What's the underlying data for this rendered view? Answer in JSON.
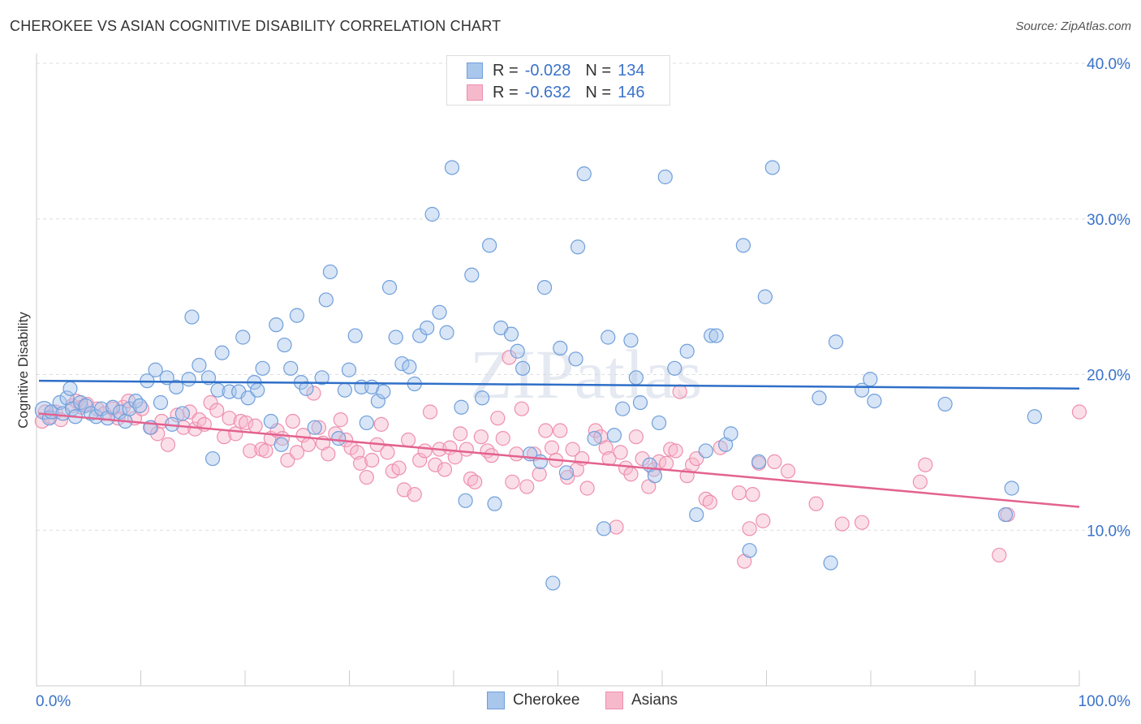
{
  "header": {
    "title": "CHEROKEE VS ASIAN COGNITIVE DISABILITY CORRELATION CHART",
    "source": "Source: ZipAtlas.com"
  },
  "watermark": "ZIPatlas",
  "legend": {
    "rows": [
      {
        "r_label": "R =",
        "r_value": "-0.028",
        "n_label": "N =",
        "n_value": "134"
      },
      {
        "r_label": "R =",
        "r_value": "-0.632",
        "n_label": "N =",
        "n_value": "146"
      }
    ]
  },
  "bottom_legend": {
    "items": [
      {
        "label": "Cherokee"
      },
      {
        "label": "Asians"
      }
    ]
  },
  "colors": {
    "cherokee_fill": "#a9c6ec",
    "cherokee_stroke": "#6f9fdc",
    "cherokee_line": "#2f6fc8",
    "asians_fill": "#f6b9cc",
    "asians_stroke": "#ee8fae",
    "asians_line": "#e3628f",
    "axis_text": "#3a73c9",
    "grid": "#dddddd"
  },
  "chart_data": {
    "type": "scatter",
    "title": "CHEROKEE VS ASIAN COGNITIVE DISABILITY CORRELATION CHART",
    "xlabel": "",
    "ylabel": "Cognitive Disability",
    "xlim": [
      0,
      100
    ],
    "ylim": [
      0,
      40.0
    ],
    "x_tick_labels": [
      "0.0%",
      "100.0%"
    ],
    "y_ticks": [
      10,
      20,
      30,
      40
    ],
    "y_tick_labels": [
      "10.0%",
      "20.0%",
      "30.0%",
      "40.0%"
    ],
    "grid": true,
    "series": [
      {
        "name": "Cherokee",
        "r": -0.028,
        "n": 134,
        "trend": {
          "x": [
            0,
            100
          ],
          "y": [
            19.6,
            19.1
          ]
        },
        "points": [
          [
            0.5,
            17.7
          ],
          [
            1.0,
            17.2
          ],
          [
            1.2,
            17.6
          ],
          [
            2.0,
            18.2
          ],
          [
            2.3,
            17.5
          ],
          [
            2.7,
            18.5
          ],
          [
            3.0,
            19.1
          ],
          [
            3.2,
            17.8
          ],
          [
            3.5,
            17.3
          ],
          [
            4.0,
            18.2
          ],
          [
            4.5,
            18.0
          ],
          [
            5.0,
            17.5
          ],
          [
            5.5,
            17.3
          ],
          [
            6.0,
            17.8
          ],
          [
            6.6,
            17.2
          ],
          [
            7.1,
            17.9
          ],
          [
            7.8,
            17.6
          ],
          [
            8.3,
            17.0
          ],
          [
            8.7,
            17.8
          ],
          [
            9.3,
            18.3
          ],
          [
            9.7,
            18.0
          ],
          [
            10.4,
            19.6
          ],
          [
            10.7,
            16.6
          ],
          [
            11.2,
            20.3
          ],
          [
            11.7,
            18.2
          ],
          [
            12.3,
            19.8
          ],
          [
            12.8,
            16.8
          ],
          [
            13.2,
            19.2
          ],
          [
            13.8,
            17.5
          ],
          [
            14.4,
            19.7
          ],
          [
            14.7,
            23.7
          ],
          [
            15.4,
            20.6
          ],
          [
            16.3,
            19.8
          ],
          [
            16.7,
            14.6
          ],
          [
            17.2,
            19.0
          ],
          [
            17.6,
            21.4
          ],
          [
            18.3,
            18.9
          ],
          [
            19.2,
            18.9
          ],
          [
            19.6,
            22.4
          ],
          [
            20.1,
            18.5
          ],
          [
            20.7,
            19.5
          ],
          [
            21.0,
            19.0
          ],
          [
            21.5,
            20.4
          ],
          [
            22.3,
            17.0
          ],
          [
            22.8,
            23.2
          ],
          [
            23.3,
            15.5
          ],
          [
            23.6,
            21.9
          ],
          [
            24.2,
            20.4
          ],
          [
            24.8,
            23.8
          ],
          [
            25.2,
            19.5
          ],
          [
            25.7,
            19.1
          ],
          [
            26.5,
            16.6
          ],
          [
            27.2,
            19.8
          ],
          [
            27.6,
            24.8
          ],
          [
            28.0,
            26.6
          ],
          [
            28.8,
            15.9
          ],
          [
            29.4,
            19.0
          ],
          [
            29.8,
            20.3
          ],
          [
            30.4,
            22.5
          ],
          [
            31.0,
            19.2
          ],
          [
            31.5,
            16.9
          ],
          [
            32.0,
            19.2
          ],
          [
            32.6,
            18.3
          ],
          [
            33.1,
            18.9
          ],
          [
            33.7,
            25.6
          ],
          [
            34.3,
            22.4
          ],
          [
            34.9,
            20.7
          ],
          [
            35.6,
            20.5
          ],
          [
            36.1,
            19.4
          ],
          [
            36.6,
            22.5
          ],
          [
            37.3,
            23.0
          ],
          [
            37.8,
            30.3
          ],
          [
            38.5,
            24.0
          ],
          [
            39.2,
            22.7
          ],
          [
            39.7,
            33.3
          ],
          [
            40.6,
            17.9
          ],
          [
            41.0,
            11.9
          ],
          [
            41.6,
            26.4
          ],
          [
            42.6,
            18.5
          ],
          [
            43.3,
            28.3
          ],
          [
            43.8,
            11.7
          ],
          [
            44.4,
            23.0
          ],
          [
            45.4,
            22.6
          ],
          [
            46.0,
            21.5
          ],
          [
            46.5,
            20.4
          ],
          [
            47.2,
            14.9
          ],
          [
            48.2,
            14.4
          ],
          [
            48.6,
            25.6
          ],
          [
            49.4,
            6.6
          ],
          [
            50.1,
            21.7
          ],
          [
            50.7,
            13.7
          ],
          [
            51.6,
            21.0
          ],
          [
            51.8,
            28.2
          ],
          [
            52.4,
            32.9
          ],
          [
            53.4,
            15.9
          ],
          [
            54.3,
            10.1
          ],
          [
            54.7,
            22.4
          ],
          [
            55.3,
            16.1
          ],
          [
            56.1,
            17.8
          ],
          [
            56.9,
            22.2
          ],
          [
            57.4,
            19.8
          ],
          [
            57.8,
            18.2
          ],
          [
            58.7,
            14.2
          ],
          [
            59.2,
            13.5
          ],
          [
            59.6,
            16.9
          ],
          [
            60.2,
            32.7
          ],
          [
            61.1,
            20.4
          ],
          [
            62.3,
            21.5
          ],
          [
            63.2,
            11.0
          ],
          [
            64.1,
            15.1
          ],
          [
            64.6,
            22.5
          ],
          [
            65.1,
            22.5
          ],
          [
            66.0,
            15.5
          ],
          [
            66.5,
            16.2
          ],
          [
            67.7,
            28.3
          ],
          [
            68.3,
            8.7
          ],
          [
            69.2,
            14.4
          ],
          [
            69.8,
            25.0
          ],
          [
            70.5,
            33.3
          ],
          [
            75.0,
            18.5
          ],
          [
            76.1,
            7.9
          ],
          [
            76.6,
            22.1
          ],
          [
            79.1,
            19.0
          ],
          [
            79.9,
            19.7
          ],
          [
            80.3,
            18.3
          ],
          [
            87.1,
            18.1
          ],
          [
            92.9,
            11.0
          ],
          [
            93.5,
            12.7
          ],
          [
            95.7,
            17.3
          ]
        ]
      },
      {
        "name": "Asians",
        "r": -0.632,
        "n": 146,
        "trend": {
          "x": [
            0,
            100
          ],
          "y": [
            17.5,
            11.5
          ]
        },
        "points": [
          [
            0.3,
            17.0
          ],
          [
            0.6,
            17.6
          ],
          [
            1.1,
            17.3
          ],
          [
            1.6,
            17.6
          ],
          [
            2.1,
            17.1
          ],
          [
            3.2,
            18.0
          ],
          [
            3.6,
            18.3
          ],
          [
            4.1,
            17.9
          ],
          [
            4.6,
            18.1
          ],
          [
            5.6,
            17.8
          ],
          [
            6.3,
            17.5
          ],
          [
            7.1,
            17.8
          ],
          [
            7.6,
            17.2
          ],
          [
            8.1,
            17.9
          ],
          [
            8.6,
            18.3
          ],
          [
            9.2,
            17.2
          ],
          [
            9.9,
            17.8
          ],
          [
            10.8,
            16.6
          ],
          [
            11.4,
            16.2
          ],
          [
            11.8,
            17.0
          ],
          [
            12.4,
            15.5
          ],
          [
            13.3,
            17.4
          ],
          [
            13.9,
            16.6
          ],
          [
            14.5,
            17.6
          ],
          [
            15.0,
            16.5
          ],
          [
            15.4,
            17.1
          ],
          [
            15.9,
            16.8
          ],
          [
            16.5,
            18.2
          ],
          [
            17.1,
            17.7
          ],
          [
            17.8,
            16.0
          ],
          [
            18.3,
            17.2
          ],
          [
            18.9,
            16.2
          ],
          [
            19.4,
            17.0
          ],
          [
            19.9,
            16.9
          ],
          [
            20.3,
            15.1
          ],
          [
            20.8,
            16.7
          ],
          [
            21.4,
            15.2
          ],
          [
            21.8,
            15.1
          ],
          [
            22.3,
            15.9
          ],
          [
            22.9,
            16.4
          ],
          [
            23.4,
            15.9
          ],
          [
            23.9,
            14.5
          ],
          [
            24.4,
            17.0
          ],
          [
            24.8,
            15.0
          ],
          [
            25.4,
            16.1
          ],
          [
            25.9,
            15.5
          ],
          [
            26.4,
            18.8
          ],
          [
            26.9,
            16.6
          ],
          [
            27.3,
            15.6
          ],
          [
            27.8,
            14.9
          ],
          [
            28.5,
            16.2
          ],
          [
            29.0,
            17.1
          ],
          [
            29.5,
            15.8
          ],
          [
            30.0,
            15.3
          ],
          [
            30.6,
            15.0
          ],
          [
            30.9,
            14.3
          ],
          [
            31.5,
            13.4
          ],
          [
            32.0,
            14.5
          ],
          [
            32.5,
            15.5
          ],
          [
            32.9,
            16.8
          ],
          [
            33.5,
            15.0
          ],
          [
            34.0,
            13.8
          ],
          [
            34.6,
            14.0
          ],
          [
            35.1,
            12.6
          ],
          [
            35.5,
            15.8
          ],
          [
            36.1,
            12.3
          ],
          [
            36.6,
            14.5
          ],
          [
            37.1,
            15.1
          ],
          [
            37.6,
            17.6
          ],
          [
            38.1,
            14.2
          ],
          [
            38.5,
            15.2
          ],
          [
            39.0,
            13.9
          ],
          [
            39.5,
            15.3
          ],
          [
            40.0,
            14.7
          ],
          [
            40.5,
            16.2
          ],
          [
            41.1,
            15.2
          ],
          [
            41.5,
            13.3
          ],
          [
            41.9,
            13.1
          ],
          [
            42.5,
            16.0
          ],
          [
            43.1,
            15.1
          ],
          [
            43.5,
            14.8
          ],
          [
            44.1,
            17.2
          ],
          [
            44.6,
            15.9
          ],
          [
            45.2,
            21.1
          ],
          [
            45.5,
            13.1
          ],
          [
            45.9,
            14.9
          ],
          [
            46.4,
            17.8
          ],
          [
            46.9,
            12.8
          ],
          [
            47.6,
            14.9
          ],
          [
            48.1,
            13.6
          ],
          [
            48.7,
            16.4
          ],
          [
            49.3,
            15.3
          ],
          [
            49.7,
            14.5
          ],
          [
            50.1,
            16.4
          ],
          [
            50.8,
            13.4
          ],
          [
            51.3,
            15.2
          ],
          [
            51.7,
            13.9
          ],
          [
            52.2,
            14.6
          ],
          [
            52.7,
            12.7
          ],
          [
            53.5,
            16.4
          ],
          [
            54.0,
            16.0
          ],
          [
            54.5,
            15.3
          ],
          [
            54.8,
            14.6
          ],
          [
            55.5,
            10.2
          ],
          [
            55.9,
            15.0
          ],
          [
            56.4,
            14.0
          ],
          [
            56.9,
            13.6
          ],
          [
            57.4,
            16.0
          ],
          [
            58.0,
            14.6
          ],
          [
            58.6,
            12.8
          ],
          [
            59.1,
            13.9
          ],
          [
            59.6,
            14.4
          ],
          [
            60.3,
            14.3
          ],
          [
            60.7,
            15.2
          ],
          [
            61.2,
            15.1
          ],
          [
            61.6,
            18.9
          ],
          [
            62.3,
            13.5
          ],
          [
            62.8,
            14.2
          ],
          [
            63.2,
            14.6
          ],
          [
            64.1,
            12.0
          ],
          [
            64.5,
            11.8
          ],
          [
            65.5,
            15.3
          ],
          [
            67.3,
            12.4
          ],
          [
            67.8,
            8.0
          ],
          [
            68.3,
            10.1
          ],
          [
            68.6,
            12.3
          ],
          [
            69.2,
            14.3
          ],
          [
            69.6,
            10.6
          ],
          [
            70.7,
            14.4
          ],
          [
            72.0,
            13.8
          ],
          [
            74.7,
            11.7
          ],
          [
            77.2,
            10.4
          ],
          [
            79.1,
            10.5
          ],
          [
            84.7,
            13.1
          ],
          [
            85.2,
            14.2
          ],
          [
            92.3,
            8.4
          ],
          [
            93.1,
            11.0
          ],
          [
            100.0,
            17.6
          ]
        ]
      }
    ]
  }
}
